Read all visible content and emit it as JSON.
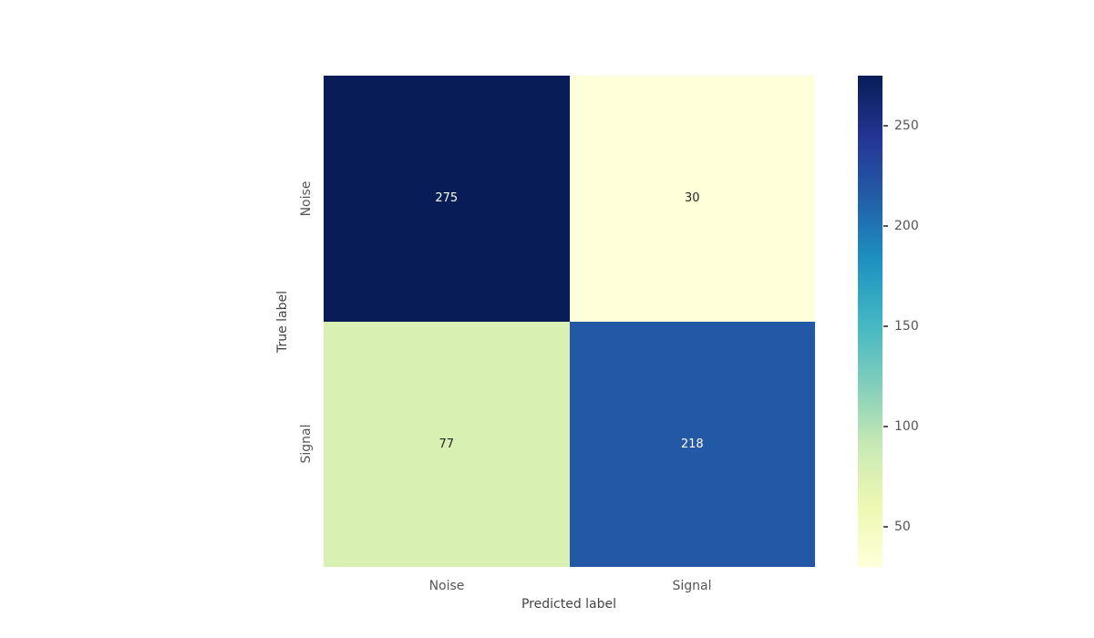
{
  "chart_data": {
    "type": "heatmap",
    "title": "",
    "xlabel": "Predicted label",
    "ylabel": "True label",
    "x_categories": [
      "Noise",
      "Signal"
    ],
    "y_categories": [
      "Noise",
      "Signal"
    ],
    "matrix": [
      [
        275,
        30
      ],
      [
        77,
        218
      ]
    ],
    "colormap": "YlGnBu",
    "vmin": 30,
    "vmax": 275,
    "colorbar_ticks": [
      "250",
      "200",
      "150",
      "100",
      "50"
    ],
    "colorbar_gradient": [
      {
        "color": "#ffffd9",
        "pos": 0
      },
      {
        "color": "#edf8b1",
        "pos": 12.5
      },
      {
        "color": "#c7e9b4",
        "pos": 25
      },
      {
        "color": "#7fcdbb",
        "pos": 37.5
      },
      {
        "color": "#41b6c4",
        "pos": 50
      },
      {
        "color": "#1d91c0",
        "pos": 62.5
      },
      {
        "color": "#225ea8",
        "pos": 75
      },
      {
        "color": "#253494",
        "pos": 87.5
      },
      {
        "color": "#081d58",
        "pos": 100
      }
    ],
    "cell_colors": [
      [
        "#081d58",
        "#ffffd9"
      ],
      [
        "#d9f0b3",
        "#2258a5"
      ]
    ],
    "cell_text_colors": [
      [
        "#ffffff",
        "#262626"
      ],
      [
        "#262626",
        "#ffffff"
      ]
    ],
    "background_color": "#ffffff",
    "tick_color": "#555555",
    "label_color": "#444444"
  }
}
